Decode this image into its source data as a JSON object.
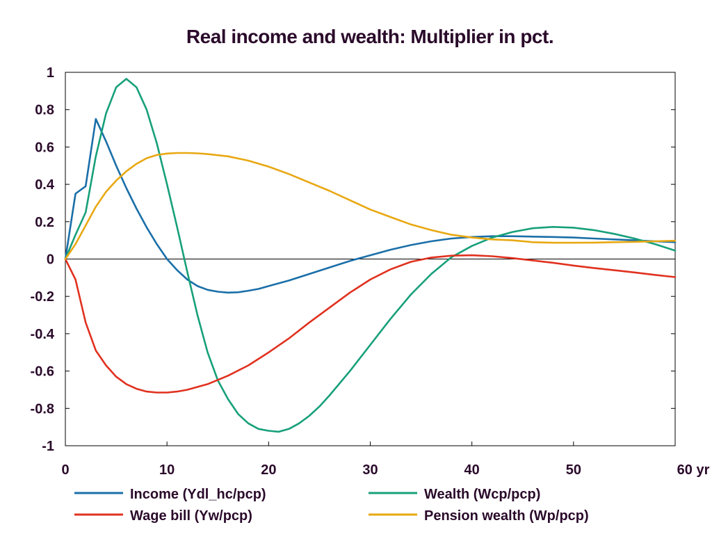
{
  "chart_data": {
    "type": "line",
    "title": "Real income and wealth: Multiplier in pct.",
    "xlabel": "",
    "ylabel": "",
    "xlim": [
      0,
      60
    ],
    "ylim": [
      -1,
      1
    ],
    "x_ticks": [
      0,
      10,
      20,
      30,
      40,
      50,
      60
    ],
    "x_tick_labels": [
      "0",
      "10",
      "20",
      "30",
      "40",
      "50",
      "60 yr"
    ],
    "y_ticks": [
      -1,
      -0.8,
      -0.6,
      -0.4,
      -0.2,
      0,
      0.2,
      0.4,
      0.6,
      0.8,
      1
    ],
    "y_tick_labels": [
      "-1",
      "-0.8",
      "-0.6",
      "-0.4",
      "-0.2",
      "0",
      "0.2",
      "0.4",
      "0.6",
      "0.8",
      "1"
    ],
    "grid": false,
    "zero_line": true,
    "legend_position": "bottom",
    "series": [
      {
        "name": "Income (Ydl_hc/pcp)",
        "color": "#1a6fa8",
        "x": [
          0,
          1,
          2,
          3,
          4,
          5,
          6,
          7,
          8,
          9,
          10,
          11,
          12,
          13,
          14,
          15,
          16,
          17,
          18,
          19,
          20,
          22,
          24,
          26,
          28,
          30,
          32,
          34,
          36,
          38,
          40,
          42,
          44,
          46,
          48,
          50,
          52,
          54,
          56,
          58,
          60
        ],
        "y": [
          0,
          0.35,
          0.39,
          0.75,
          0.63,
          0.5,
          0.38,
          0.27,
          0.17,
          0.08,
          0.0,
          -0.06,
          -0.11,
          -0.145,
          -0.165,
          -0.175,
          -0.18,
          -0.178,
          -0.17,
          -0.16,
          -0.145,
          -0.115,
          -0.08,
          -0.045,
          -0.01,
          0.02,
          0.05,
          0.075,
          0.095,
          0.11,
          0.118,
          0.122,
          0.122,
          0.12,
          0.118,
          0.115,
          0.11,
          0.105,
          0.1,
          0.095,
          0.09
        ]
      },
      {
        "name": "Wealth (Wcp/pcp)",
        "color": "#17a07a",
        "x": [
          0,
          1,
          2,
          3,
          4,
          5,
          6,
          7,
          8,
          9,
          10,
          11,
          12,
          13,
          14,
          15,
          16,
          17,
          18,
          19,
          20,
          21,
          22,
          23,
          24,
          25,
          26,
          28,
          30,
          32,
          34,
          36,
          38,
          40,
          42,
          44,
          46,
          48,
          50,
          52,
          54,
          56,
          58,
          60
        ],
        "y": [
          0,
          0.13,
          0.25,
          0.55,
          0.78,
          0.92,
          0.965,
          0.92,
          0.8,
          0.62,
          0.4,
          0.17,
          -0.07,
          -0.3,
          -0.5,
          -0.65,
          -0.75,
          -0.83,
          -0.88,
          -0.91,
          -0.92,
          -0.925,
          -0.91,
          -0.88,
          -0.84,
          -0.79,
          -0.73,
          -0.6,
          -0.46,
          -0.32,
          -0.19,
          -0.08,
          0.01,
          0.07,
          0.115,
          0.145,
          0.165,
          0.172,
          0.168,
          0.155,
          0.135,
          0.11,
          0.08,
          0.045
        ]
      },
      {
        "name": "Wage bill (Yw/pcp)",
        "color": "#e0311f",
        "x": [
          0,
          1,
          2,
          3,
          4,
          5,
          6,
          7,
          8,
          9,
          10,
          11,
          12,
          14,
          16,
          18,
          20,
          22,
          24,
          26,
          28,
          30,
          32,
          34,
          36,
          38,
          40,
          42,
          44,
          46,
          48,
          50,
          52,
          54,
          56,
          58,
          60
        ],
        "y": [
          0,
          -0.11,
          -0.34,
          -0.49,
          -0.57,
          -0.63,
          -0.67,
          -0.695,
          -0.71,
          -0.715,
          -0.715,
          -0.71,
          -0.7,
          -0.67,
          -0.625,
          -0.57,
          -0.5,
          -0.425,
          -0.34,
          -0.26,
          -0.18,
          -0.11,
          -0.055,
          -0.015,
          0.008,
          0.018,
          0.02,
          0.015,
          0.005,
          -0.008,
          -0.02,
          -0.035,
          -0.048,
          -0.06,
          -0.072,
          -0.085,
          -0.097
        ]
      },
      {
        "name": "Pension wealth (Wp/pcp)",
        "color": "#e8a812",
        "x": [
          0,
          1,
          2,
          3,
          4,
          5,
          6,
          7,
          8,
          9,
          10,
          11,
          12,
          13,
          14,
          16,
          18,
          20,
          22,
          24,
          26,
          28,
          30,
          32,
          34,
          36,
          38,
          40,
          42,
          44,
          46,
          48,
          50,
          52,
          54,
          56,
          58,
          60
        ],
        "y": [
          0,
          0.08,
          0.18,
          0.28,
          0.36,
          0.42,
          0.47,
          0.51,
          0.54,
          0.557,
          0.565,
          0.568,
          0.568,
          0.566,
          0.562,
          0.55,
          0.527,
          0.495,
          0.455,
          0.41,
          0.365,
          0.315,
          0.265,
          0.225,
          0.185,
          0.155,
          0.13,
          0.115,
          0.105,
          0.1,
          0.09,
          0.087,
          0.087,
          0.088,
          0.09,
          0.092,
          0.095,
          0.098
        ]
      }
    ]
  }
}
